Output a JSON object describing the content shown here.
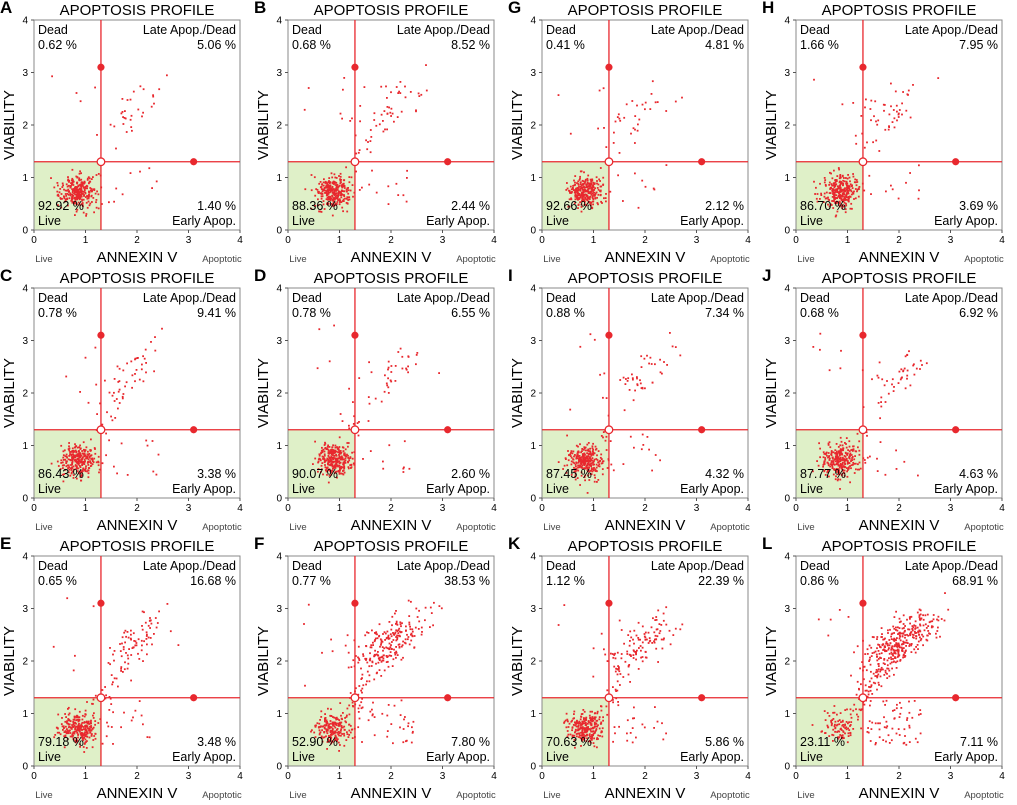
{
  "figure": {
    "panel_title": "APOPTOSIS PROFILE",
    "x_axis_label": "ANNEXIN V",
    "y_axis_label": "VIABILITY",
    "x_left_tag": "Live",
    "x_right_tag": "Apoptotic",
    "quadrant_labels": {
      "dead": "Dead",
      "late": "Late Apop./Dead",
      "live": "Live",
      "early": "Early Apop."
    },
    "x_ticks": [
      "0",
      "1",
      "2",
      "3",
      "4"
    ],
    "y_ticks": [
      "0",
      "1",
      "2",
      "3",
      "4"
    ],
    "colors": {
      "gate": "#e8282e",
      "live_region": "#dff0c8",
      "point": "#e8282e",
      "frame": "#888888"
    }
  },
  "chart_data": [
    {
      "type": "scatter",
      "id": "A",
      "title": "APOPTOSIS PROFILE",
      "xlabel": "ANNEXIN V",
      "ylabel": "VIABILITY",
      "xlim": [
        0,
        4
      ],
      "ylim": [
        0,
        4
      ],
      "gate": {
        "x": 1.3,
        "y": 1.3
      },
      "dead": "0.62 %",
      "late": "5.06 %",
      "live": "92.92 %",
      "early": "1.40 %",
      "live_center": [
        0.85,
        0.72
      ],
      "late_center": [
        1.95,
        2.35
      ],
      "n_live": 300,
      "n_late": 25
    },
    {
      "type": "scatter",
      "id": "B",
      "title": "APOPTOSIS PROFILE",
      "xlabel": "ANNEXIN V",
      "ylabel": "VIABILITY",
      "xlim": [
        0,
        4
      ],
      "ylim": [
        0,
        4
      ],
      "gate": {
        "x": 1.3,
        "y": 1.3
      },
      "dead": "0.68 %",
      "late": "8.52 %",
      "live": "88.36 %",
      "early": "2.44 %",
      "live_center": [
        0.9,
        0.72
      ],
      "late_center": [
        1.95,
        2.35
      ],
      "n_live": 280,
      "n_late": 45
    },
    {
      "type": "scatter",
      "id": "G",
      "title": "APOPTOSIS PROFILE",
      "xlabel": "ANNEXIN V",
      "ylabel": "VIABILITY",
      "xlim": [
        0,
        4
      ],
      "ylim": [
        0,
        4
      ],
      "gate": {
        "x": 1.3,
        "y": 1.3
      },
      "dead": "0.41 %",
      "late": "4.81 %",
      "live": "92.66 %",
      "early": "2.12 %",
      "live_center": [
        0.85,
        0.72
      ],
      "late_center": [
        1.95,
        2.3
      ],
      "n_live": 300,
      "n_late": 25
    },
    {
      "type": "scatter",
      "id": "H",
      "title": "APOPTOSIS PROFILE",
      "xlabel": "ANNEXIN V",
      "ylabel": "VIABILITY",
      "xlim": [
        0,
        4
      ],
      "ylim": [
        0,
        4
      ],
      "gate": {
        "x": 1.3,
        "y": 1.3
      },
      "dead": "1.66 %",
      "late": "7.95 %",
      "live": "86.70 %",
      "early": "3.69 %",
      "live_center": [
        0.85,
        0.72
      ],
      "late_center": [
        1.9,
        2.3
      ],
      "n_live": 280,
      "n_late": 40
    },
    {
      "type": "scatter",
      "id": "C",
      "title": "APOPTOSIS PROFILE",
      "xlabel": "ANNEXIN V",
      "ylabel": "VIABILITY",
      "xlim": [
        0,
        4
      ],
      "ylim": [
        0,
        4
      ],
      "gate": {
        "x": 1.3,
        "y": 1.3
      },
      "dead": "0.78 %",
      "late": "9.41 %",
      "live": "86.43 %",
      "early": "3.38 %",
      "live_center": [
        0.85,
        0.72
      ],
      "late_center": [
        1.9,
        2.35
      ],
      "n_live": 280,
      "n_late": 45
    },
    {
      "type": "scatter",
      "id": "D",
      "title": "APOPTOSIS PROFILE",
      "xlabel": "ANNEXIN V",
      "ylabel": "VIABILITY",
      "xlim": [
        0,
        4
      ],
      "ylim": [
        0,
        4
      ],
      "gate": {
        "x": 1.3,
        "y": 1.3
      },
      "dead": "0.78 %",
      "late": "6.55 %",
      "live": "90.07 %",
      "early": "2.60 %",
      "live_center": [
        0.9,
        0.72
      ],
      "late_center": [
        2.0,
        2.35
      ],
      "n_live": 290,
      "n_late": 35
    },
    {
      "type": "scatter",
      "id": "I",
      "title": "APOPTOSIS PROFILE",
      "xlabel": "ANNEXIN V",
      "ylabel": "VIABILITY",
      "xlim": [
        0,
        4
      ],
      "ylim": [
        0,
        4
      ],
      "gate": {
        "x": 1.3,
        "y": 1.3
      },
      "dead": "0.88 %",
      "late": "7.34 %",
      "live": "87.45 %",
      "early": "4.32 %",
      "live_center": [
        0.85,
        0.72
      ],
      "late_center": [
        1.95,
        2.35
      ],
      "n_live": 280,
      "n_late": 40
    },
    {
      "type": "scatter",
      "id": "J",
      "title": "APOPTOSIS PROFILE",
      "xlabel": "ANNEXIN V",
      "ylabel": "VIABILITY",
      "xlim": [
        0,
        4
      ],
      "ylim": [
        0,
        4
      ],
      "gate": {
        "x": 1.3,
        "y": 1.3
      },
      "dead": "0.68 %",
      "late": "6.92 %",
      "live": "87.77 %",
      "early": "4.63 %",
      "live_center": [
        0.85,
        0.72
      ],
      "late_center": [
        2.0,
        2.35
      ],
      "n_live": 280,
      "n_late": 38
    },
    {
      "type": "scatter",
      "id": "E",
      "title": "APOPTOSIS PROFILE",
      "xlabel": "ANNEXIN V",
      "ylabel": "VIABILITY",
      "xlim": [
        0,
        4
      ],
      "ylim": [
        0,
        4
      ],
      "gate": {
        "x": 1.3,
        "y": 1.3
      },
      "dead": "0.65 %",
      "late": "16.68 %",
      "live": "79.18 %",
      "early": "3.48 %",
      "live_center": [
        0.85,
        0.72
      ],
      "late_center": [
        2.0,
        2.4
      ],
      "n_live": 260,
      "n_late": 80
    },
    {
      "type": "scatter",
      "id": "F",
      "title": "APOPTOSIS PROFILE",
      "xlabel": "ANNEXIN V",
      "ylabel": "VIABILITY",
      "xlim": [
        0,
        4
      ],
      "ylim": [
        0,
        4
      ],
      "gate": {
        "x": 1.3,
        "y": 1.3
      },
      "dead": "0.77 %",
      "late": "38.53 %",
      "live": "52.90 %",
      "early": "7.80 %",
      "live_center": [
        0.85,
        0.72
      ],
      "late_center": [
        2.0,
        2.35
      ],
      "n_live": 200,
      "n_late": 200
    },
    {
      "type": "scatter",
      "id": "K",
      "title": "APOPTOSIS PROFILE",
      "xlabel": "ANNEXIN V",
      "ylabel": "VIABILITY",
      "xlim": [
        0,
        4
      ],
      "ylim": [
        0,
        4
      ],
      "gate": {
        "x": 1.3,
        "y": 1.3
      },
      "dead": "1.12 %",
      "late": "22.39 %",
      "live": "70.63 %",
      "early": "5.86 %",
      "live_center": [
        0.85,
        0.72
      ],
      "late_center": [
        1.95,
        2.35
      ],
      "n_live": 240,
      "n_late": 110
    },
    {
      "type": "scatter",
      "id": "L",
      "title": "APOPTOSIS PROFILE",
      "xlabel": "ANNEXIN V",
      "ylabel": "VIABILITY",
      "xlim": [
        0,
        4
      ],
      "ylim": [
        0,
        4
      ],
      "gate": {
        "x": 1.3,
        "y": 1.3
      },
      "dead": "0.86 %",
      "late": "68.91 %",
      "live": "23.11 %",
      "early": "7.11 %",
      "live_center": [
        0.85,
        0.72
      ],
      "late_center": [
        2.05,
        2.4
      ],
      "n_live": 90,
      "n_late": 320
    }
  ]
}
